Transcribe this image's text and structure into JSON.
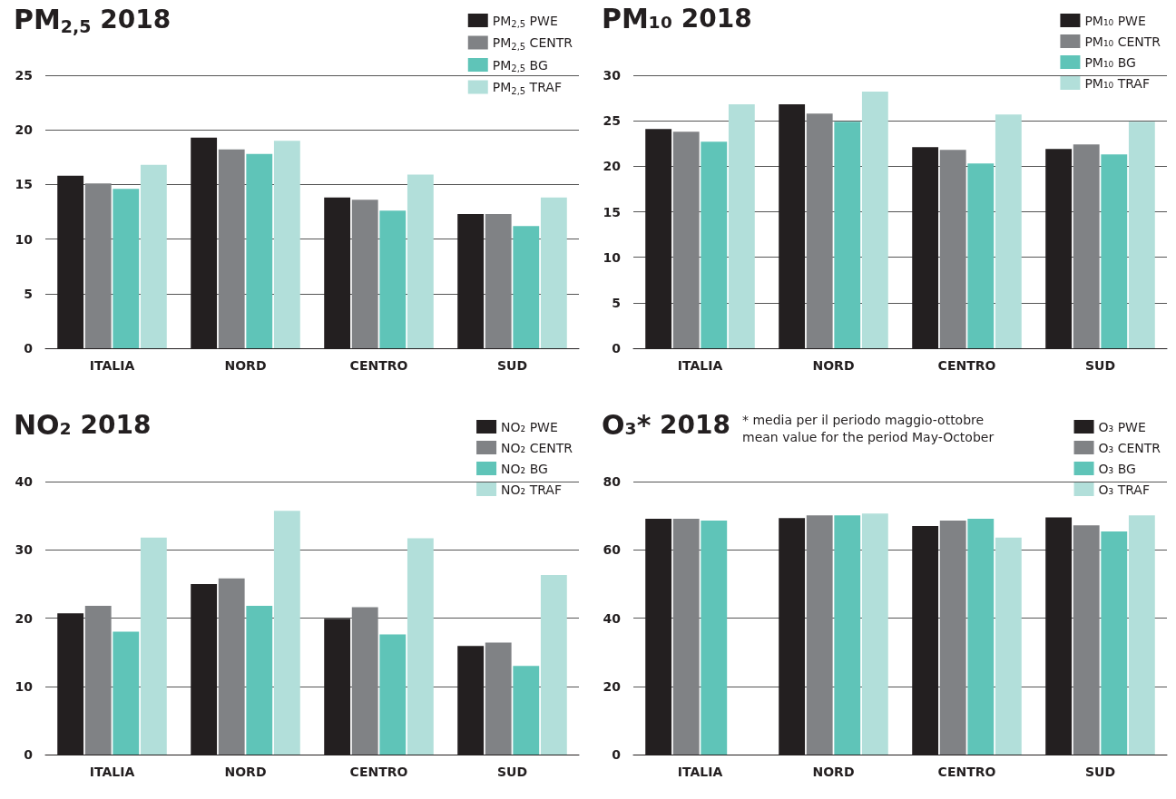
{
  "chart_data": [
    {
      "type": "bar",
      "title": "PM$_{2,5}$ 2018",
      "categories": [
        "ITALIA",
        "NORD",
        "CENTRO",
        "SUD"
      ],
      "ylim": [
        0,
        25
      ],
      "yticks": [
        0,
        5,
        10,
        15,
        20,
        25
      ],
      "grid": "y",
      "legend": "top right",
      "series": [
        {
          "name": "PM$_{2,5}$ PWE",
          "color": "#231f20",
          "values": [
            15.8,
            19.3,
            13.8,
            12.3
          ]
        },
        {
          "name": "PM$_{2,5}$ CENTR",
          "color": "#808285",
          "values": [
            15.1,
            18.2,
            13.6,
            12.3
          ]
        },
        {
          "name": "PM$_{2,5}$ BG",
          "color": "#5fc4b8",
          "values": [
            14.6,
            17.8,
            12.6,
            11.2
          ]
        },
        {
          "name": "PM$_{2,5}$ TRAF",
          "color": "#b2dfda",
          "values": [
            16.8,
            19.0,
            15.9,
            13.8
          ]
        }
      ]
    },
    {
      "type": "bar",
      "title": "PM₁₀ 2018",
      "categories": [
        "ITALIA",
        "NORD",
        "CENTRO",
        "SUD"
      ],
      "ylim": [
        0,
        30
      ],
      "yticks": [
        0,
        5,
        10,
        15,
        20,
        25,
        30
      ],
      "grid": "y",
      "legend": "top right",
      "series": [
        {
          "name": "PM₁₀ PWE",
          "color": "#231f20",
          "values": [
            24.1,
            26.8,
            22.1,
            21.9
          ]
        },
        {
          "name": "PM₁₀ CENTR",
          "color": "#808285",
          "values": [
            23.8,
            25.8,
            21.8,
            22.4
          ]
        },
        {
          "name": "PM₁₀ BG",
          "color": "#5fc4b8",
          "values": [
            22.7,
            24.9,
            20.3,
            21.3
          ]
        },
        {
          "name": "PM₁₀ TRAF",
          "color": "#b2dfda",
          "values": [
            26.8,
            28.2,
            25.7,
            24.9
          ]
        }
      ]
    },
    {
      "type": "bar",
      "title": "NO₂ 2018",
      "categories": [
        "ITALIA",
        "NORD",
        "CENTRO",
        "SUD"
      ],
      "ylim": [
        0,
        40
      ],
      "yticks": [
        0,
        10,
        20,
        30,
        40
      ],
      "grid": "y",
      "legend": "top right",
      "series": [
        {
          "name": "NO₂ PWE",
          "color": "#231f20",
          "values": [
            20.7,
            25.0,
            19.9,
            15.9
          ]
        },
        {
          "name": "NO₂ CENTR",
          "color": "#808285",
          "values": [
            21.8,
            25.8,
            21.6,
            16.4
          ]
        },
        {
          "name": "NO₂ BG",
          "color": "#5fc4b8",
          "values": [
            18.0,
            21.8,
            17.6,
            13.0
          ]
        },
        {
          "name": "NO₂ TRAF",
          "color": "#b2dfda",
          "values": [
            31.8,
            35.7,
            31.7,
            26.3
          ]
        }
      ]
    },
    {
      "type": "bar",
      "title": "O₃* 2018",
      "categories": [
        "ITALIA",
        "NORD",
        "CENTRO",
        "SUD"
      ],
      "ylim": [
        0,
        80
      ],
      "yticks": [
        0,
        20,
        40,
        60,
        80
      ],
      "grid": "y",
      "legend": "top right",
      "annotations": [
        "* media per il periodo maggio-ottobre",
        "mean value for the period May-October"
      ],
      "series": [
        {
          "name": "O₃ PWE",
          "color": "#231f20",
          "values": [
            69.1,
            69.3,
            67.0,
            69.5
          ]
        },
        {
          "name": "O₃ CENTR",
          "color": "#808285",
          "values": [
            69.1,
            70.1,
            68.6,
            67.2
          ]
        },
        {
          "name": "O₃ BG",
          "color": "#5fc4b8",
          "values": [
            68.6,
            70.1,
            69.1,
            65.4
          ]
        },
        {
          "name": "O₃ TRAF",
          "color": "#b2dfda",
          "values": [
            null,
            70.6,
            63.6,
            70.1
          ]
        }
      ]
    }
  ]
}
